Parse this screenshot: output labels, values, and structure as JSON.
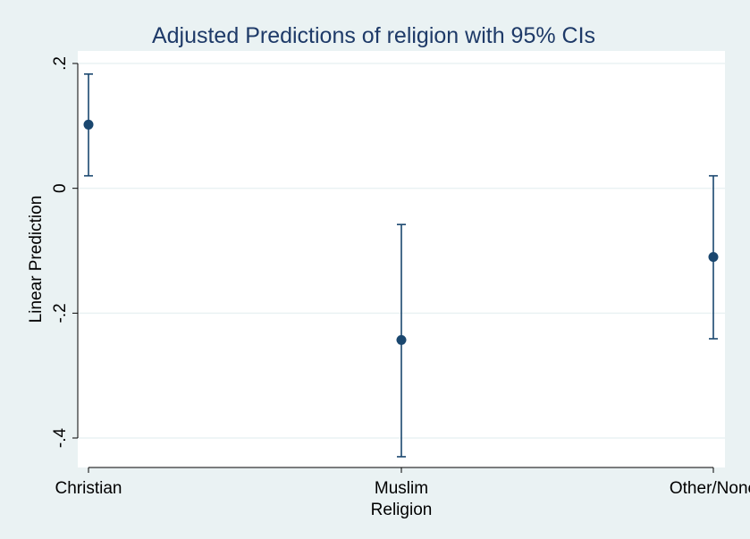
{
  "chart_data": {
    "type": "scatter",
    "title": "Adjusted Predictions of religion with 95% CIs",
    "xlabel": "Religion",
    "ylabel": "Linear Prediction",
    "categories": [
      "Christian",
      "Muslim",
      "Other/None"
    ],
    "values": [
      0.102,
      -0.243,
      -0.11
    ],
    "ci_lower": [
      0.02,
      -0.43,
      -0.241
    ],
    "ci_upper": [
      0.183,
      -0.058,
      0.02
    ],
    "ylim": [
      -0.45,
      0.2
    ],
    "yticks": [
      0.2,
      0,
      -0.2,
      -0.4
    ],
    "ytick_labels": [
      ".2",
      "0",
      "-.2",
      "-.4"
    ],
    "grid": true,
    "legend": "none"
  },
  "colors": {
    "background": "#eaf2f3",
    "plot_area": "#ffffff",
    "title": "#1e3a68",
    "marker": "#1a476f",
    "gridline": "#eaf2f3",
    "axis": "#000000"
  }
}
